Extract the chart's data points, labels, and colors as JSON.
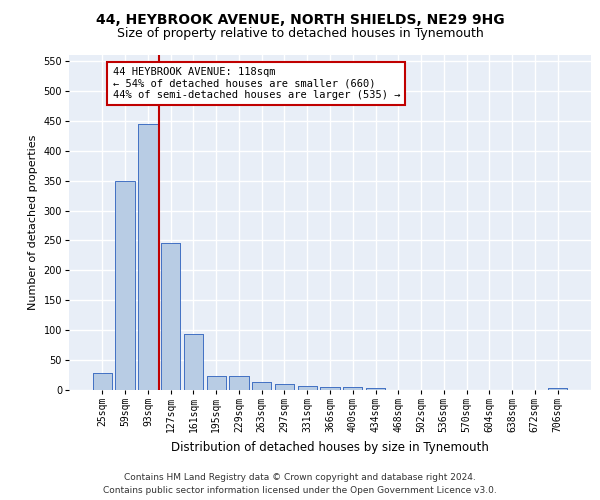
{
  "title": "44, HEYBROOK AVENUE, NORTH SHIELDS, NE29 9HG",
  "subtitle": "Size of property relative to detached houses in Tynemouth",
  "xlabel": "Distribution of detached houses by size in Tynemouth",
  "ylabel": "Number of detached properties",
  "categories": [
    "25sqm",
    "59sqm",
    "93sqm",
    "127sqm",
    "161sqm",
    "195sqm",
    "229sqm",
    "263sqm",
    "297sqm",
    "331sqm",
    "366sqm",
    "400sqm",
    "434sqm",
    "468sqm",
    "502sqm",
    "536sqm",
    "570sqm",
    "604sqm",
    "638sqm",
    "672sqm",
    "706sqm"
  ],
  "values": [
    28,
    350,
    445,
    245,
    93,
    23,
    23,
    13,
    10,
    7,
    5,
    5,
    3,
    0,
    0,
    0,
    0,
    0,
    0,
    0,
    3
  ],
  "bar_color": "#b8cce4",
  "bar_edge_color": "#4472c4",
  "background_color": "#e8eef7",
  "grid_color": "#ffffff",
  "vline_color": "#c00000",
  "annotation_text": "44 HEYBROOK AVENUE: 118sqm\n← 54% of detached houses are smaller (660)\n44% of semi-detached houses are larger (535) →",
  "annotation_box_color": "#ffffff",
  "annotation_box_edge_color": "#c00000",
  "ylim": [
    0,
    560
  ],
  "yticks": [
    0,
    50,
    100,
    150,
    200,
    250,
    300,
    350,
    400,
    450,
    500,
    550
  ],
  "footer_line1": "Contains HM Land Registry data © Crown copyright and database right 2024.",
  "footer_line2": "Contains public sector information licensed under the Open Government Licence v3.0.",
  "title_fontsize": 10,
  "subtitle_fontsize": 9,
  "annotation_fontsize": 7.5,
  "tick_fontsize": 7,
  "ylabel_fontsize": 8,
  "xlabel_fontsize": 8.5,
  "footer_fontsize": 6.5
}
